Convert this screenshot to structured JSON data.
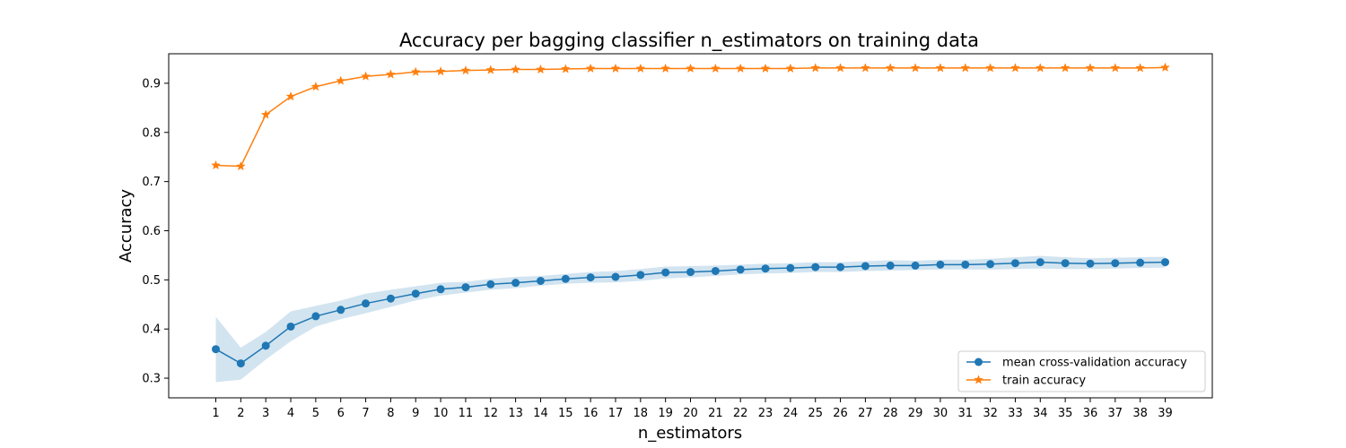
{
  "chart_data": {
    "type": "line",
    "title": "Accuracy per bagging classifier n_estimators on training data",
    "xlabel": "n_estimators",
    "ylabel": "Accuracy",
    "x": [
      1,
      2,
      3,
      4,
      5,
      6,
      7,
      8,
      9,
      10,
      11,
      12,
      13,
      14,
      15,
      16,
      17,
      18,
      19,
      20,
      21,
      22,
      23,
      24,
      25,
      26,
      27,
      28,
      29,
      30,
      31,
      32,
      33,
      34,
      35,
      36,
      37,
      38,
      39
    ],
    "ylim": [
      0.26,
      0.96
    ],
    "yticks": [
      0.3,
      0.4,
      0.5,
      0.6,
      0.7,
      0.8,
      0.9
    ],
    "grid": false,
    "legend_position": "lower-right",
    "series": [
      {
        "name": "mean cross-validation accuracy",
        "color": "#1f77b4",
        "marker": "circle",
        "values": [
          0.359,
          0.33,
          0.366,
          0.405,
          0.426,
          0.439,
          0.452,
          0.462,
          0.472,
          0.481,
          0.485,
          0.491,
          0.494,
          0.498,
          0.502,
          0.505,
          0.506,
          0.51,
          0.515,
          0.516,
          0.518,
          0.521,
          0.523,
          0.524,
          0.526,
          0.526,
          0.528,
          0.529,
          0.529,
          0.531,
          0.531,
          0.532,
          0.534,
          0.536,
          0.534,
          0.533,
          0.534,
          0.535,
          0.536
        ],
        "band_low": [
          0.292,
          0.297,
          0.338,
          0.375,
          0.405,
          0.42,
          0.432,
          0.445,
          0.458,
          0.468,
          0.474,
          0.48,
          0.483,
          0.488,
          0.492,
          0.494,
          0.495,
          0.498,
          0.503,
          0.505,
          0.508,
          0.511,
          0.513,
          0.514,
          0.516,
          0.516,
          0.518,
          0.519,
          0.52,
          0.521,
          0.521,
          0.521,
          0.522,
          0.523,
          0.522,
          0.522,
          0.523,
          0.524,
          0.525
        ],
        "band_high": [
          0.425,
          0.362,
          0.394,
          0.436,
          0.447,
          0.458,
          0.472,
          0.48,
          0.487,
          0.494,
          0.496,
          0.502,
          0.506,
          0.508,
          0.512,
          0.516,
          0.518,
          0.522,
          0.527,
          0.528,
          0.529,
          0.531,
          0.533,
          0.534,
          0.536,
          0.536,
          0.538,
          0.54,
          0.539,
          0.541,
          0.541,
          0.543,
          0.546,
          0.549,
          0.546,
          0.544,
          0.545,
          0.546,
          0.547
        ]
      },
      {
        "name": "train accuracy",
        "color": "#ff7f0e",
        "marker": "star",
        "values": [
          0.733,
          0.731,
          0.836,
          0.873,
          0.893,
          0.905,
          0.914,
          0.918,
          0.923,
          0.924,
          0.926,
          0.927,
          0.928,
          0.928,
          0.929,
          0.93,
          0.93,
          0.93,
          0.93,
          0.93,
          0.93,
          0.93,
          0.93,
          0.93,
          0.931,
          0.931,
          0.931,
          0.931,
          0.931,
          0.931,
          0.931,
          0.931,
          0.931,
          0.931,
          0.931,
          0.931,
          0.931,
          0.931,
          0.932
        ]
      }
    ]
  }
}
